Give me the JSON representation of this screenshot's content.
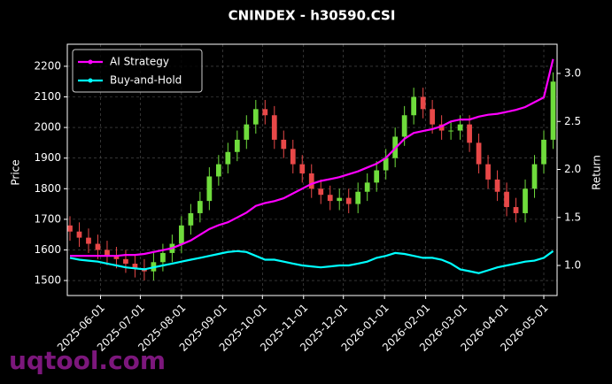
{
  "chart_data": {
    "type": "candlestick",
    "title": "CNINDEX - h30590.CSI",
    "ylabel": "Price",
    "y2label": "Return",
    "watermark": "uqtool.com",
    "grid": true,
    "legend": "upper left",
    "up_color": "#6fdc3c",
    "down_color": "#e84848",
    "x": [
      "2025-05-09",
      "2025-05-16",
      "2025-05-23",
      "2025-05-30",
      "2025-06-06",
      "2025-06-13",
      "2025-06-20",
      "2025-06-27",
      "2025-07-04",
      "2025-07-11",
      "2025-07-18",
      "2025-07-25",
      "2025-08-01",
      "2025-08-08",
      "2025-08-15",
      "2025-08-22",
      "2025-08-29",
      "2025-09-05",
      "2025-09-12",
      "2025-09-19",
      "2025-09-26",
      "2025-10-03",
      "2025-10-10",
      "2025-10-17",
      "2025-10-24",
      "2025-10-31",
      "2025-11-07",
      "2025-11-14",
      "2025-11-21",
      "2025-11-28",
      "2025-12-05",
      "2025-12-12",
      "2025-12-19",
      "2025-12-26",
      "2026-01-02",
      "2026-01-09",
      "2026-01-16",
      "2026-01-23",
      "2026-01-30",
      "2026-02-06",
      "2026-02-13",
      "2026-02-20",
      "2026-02-27",
      "2026-03-06",
      "2026-03-13",
      "2026-03-20",
      "2026-03-27",
      "2026-04-03",
      "2026-04-10",
      "2026-04-17",
      "2026-04-24",
      "2026-05-01",
      "2026-05-08"
    ],
    "open": [
      1680,
      1660,
      1640,
      1620,
      1600,
      1580,
      1570,
      1555,
      1540,
      1530,
      1560,
      1590,
      1620,
      1680,
      1720,
      1760,
      1840,
      1880,
      1920,
      1960,
      2010,
      2060,
      2040,
      1960,
      1930,
      1880,
      1850,
      1800,
      1780,
      1760,
      1770,
      1750,
      1790,
      1820,
      1860,
      1900,
      1970,
      2040,
      2100,
      2060,
      2010,
      1990,
      1990,
      2010,
      1950,
      1880,
      1830,
      1790,
      1740,
      1720,
      1800,
      1880,
      1960
    ],
    "high": [
      1710,
      1690,
      1670,
      1650,
      1630,
      1610,
      1600,
      1585,
      1570,
      1590,
      1620,
      1650,
      1710,
      1750,
      1790,
      1870,
      1910,
      1950,
      1990,
      2040,
      2090,
      2090,
      2070,
      1990,
      1960,
      1910,
      1880,
      1830,
      1810,
      1800,
      1800,
      1820,
      1850,
      1890,
      1930,
      2000,
      2070,
      2130,
      2130,
      2090,
      2040,
      2020,
      2040,
      2040,
      1980,
      1910,
      1860,
      1820,
      1770,
      1830,
      1910,
      1990,
      2180
    ],
    "low": [
      1630,
      1610,
      1590,
      1570,
      1550,
      1540,
      1525,
      1510,
      1500,
      1500,
      1530,
      1560,
      1590,
      1650,
      1690,
      1730,
      1810,
      1850,
      1890,
      1930,
      1980,
      2010,
      1930,
      1900,
      1850,
      1820,
      1770,
      1750,
      1730,
      1730,
      1720,
      1720,
      1760,
      1790,
      1830,
      1870,
      1940,
      2010,
      2030,
      1980,
      1960,
      1960,
      1960,
      1920,
      1850,
      1800,
      1760,
      1710,
      1690,
      1690,
      1770,
      1850,
      1930
    ],
    "close": [
      1660,
      1640,
      1620,
      1600,
      1580,
      1570,
      1555,
      1540,
      1530,
      1560,
      1590,
      1620,
      1680,
      1720,
      1760,
      1840,
      1880,
      1920,
      1960,
      2010,
      2060,
      2040,
      1960,
      1930,
      1880,
      1850,
      1800,
      1780,
      1760,
      1770,
      1750,
      1790,
      1820,
      1860,
      1900,
      1970,
      2040,
      2100,
      2060,
      2010,
      1990,
      1990,
      2010,
      1950,
      1880,
      1830,
      1790,
      1740,
      1720,
      1800,
      1880,
      1960,
      2150
    ],
    "series": [
      {
        "name": "AI Strategy",
        "color": "#ff00ff",
        "axis": "y2",
        "values": [
          1.1,
          1.1,
          1.1,
          1.1,
          1.1,
          1.1,
          1.11,
          1.11,
          1.12,
          1.14,
          1.16,
          1.18,
          1.22,
          1.26,
          1.32,
          1.38,
          1.42,
          1.45,
          1.5,
          1.55,
          1.62,
          1.65,
          1.67,
          1.7,
          1.75,
          1.8,
          1.85,
          1.88,
          1.9,
          1.92,
          1.95,
          1.98,
          2.02,
          2.06,
          2.12,
          2.22,
          2.32,
          2.38,
          2.4,
          2.42,
          2.45,
          2.5,
          2.52,
          2.52,
          2.55,
          2.57,
          2.58,
          2.6,
          2.62,
          2.65,
          2.7,
          2.75,
          3.15
        ]
      },
      {
        "name": "Buy-and-Hold",
        "color": "#00ffff",
        "axis": "y2",
        "values": [
          1.08,
          1.06,
          1.05,
          1.04,
          1.02,
          1.0,
          0.98,
          0.97,
          0.96,
          0.98,
          1.0,
          1.02,
          1.04,
          1.06,
          1.08,
          1.1,
          1.12,
          1.14,
          1.15,
          1.14,
          1.1,
          1.06,
          1.06,
          1.04,
          1.02,
          1.0,
          0.99,
          0.98,
          0.99,
          1.0,
          1.0,
          1.02,
          1.04,
          1.08,
          1.1,
          1.13,
          1.12,
          1.1,
          1.08,
          1.08,
          1.06,
          1.02,
          0.96,
          0.94,
          0.92,
          0.95,
          0.98,
          1.0,
          1.02,
          1.04,
          1.05,
          1.08,
          1.15
        ]
      }
    ],
    "xlim": [
      "2025-05-07",
      "2026-05-11"
    ],
    "xticks": [
      "2025-06-01",
      "2025-07-01",
      "2025-08-01",
      "2025-09-01",
      "2025-10-01",
      "2025-11-01",
      "2025-12-01",
      "2026-01-01",
      "2026-02-01",
      "2026-03-01",
      "2026-04-01",
      "2026-05-01"
    ],
    "ylim": [
      1451,
      2272
    ],
    "yticks": [
      1500,
      1600,
      1700,
      1800,
      1900,
      2000,
      2100,
      2200
    ],
    "y2lim": [
      0.687,
      3.304
    ],
    "y2ticks": [
      {
        "value": 1,
        "label": "1.0"
      },
      {
        "value": 1.5,
        "label": "1.5"
      },
      {
        "value": 2,
        "label": "2.0"
      },
      {
        "value": 2.5,
        "label": "2.5"
      },
      {
        "value": 3,
        "label": "3.0"
      }
    ]
  }
}
